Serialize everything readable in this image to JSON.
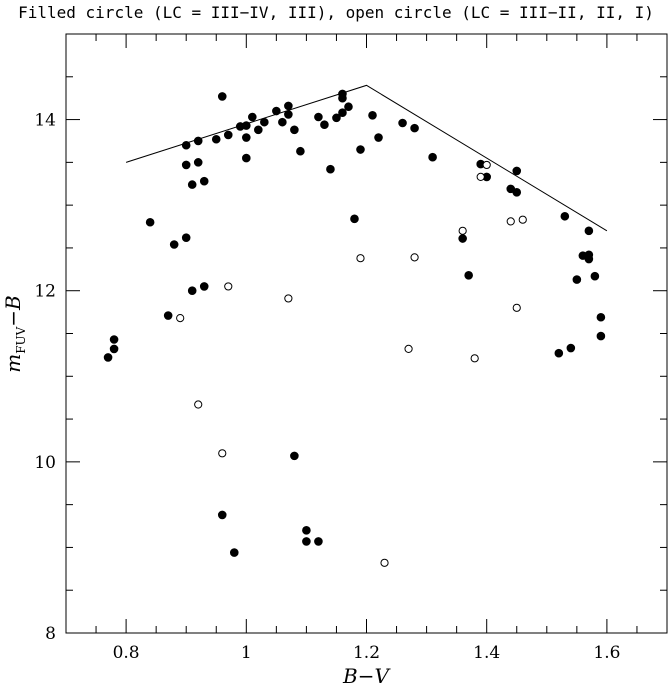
{
  "chart_data": {
    "type": "scatter",
    "title": "Filled circle (LC = III−IV, III), open circle (LC = III−II, II, I)",
    "xlabel": "B−V",
    "ylabel_main": "m",
    "ylabel_sub": "FUV",
    "ylabel_tail": "−B",
    "xlim": [
      0.7,
      1.7
    ],
    "ylim": [
      8,
      15
    ],
    "x_ticks": [
      0.8,
      1.0,
      1.2,
      1.4,
      1.6
    ],
    "x_tick_labels": [
      "0.8",
      "1",
      "1.2",
      "1.4",
      "1.6"
    ],
    "y_ticks": [
      8,
      10,
      12,
      14
    ],
    "y_tick_labels": [
      "8",
      "10",
      "12",
      "14"
    ],
    "grid": false,
    "envelope_line": [
      [
        0.8,
        13.5
      ],
      [
        1.2,
        14.4
      ],
      [
        1.6,
        12.7
      ]
    ],
    "series": [
      {
        "name": "Filled circle (LC = III−IV, III)",
        "marker": "filled",
        "points": [
          [
            0.77,
            11.22
          ],
          [
            0.78,
            11.32
          ],
          [
            0.78,
            11.43
          ],
          [
            0.84,
            12.8
          ],
          [
            0.87,
            11.71
          ],
          [
            0.88,
            12.54
          ],
          [
            0.9,
            13.7
          ],
          [
            0.9,
            13.47
          ],
          [
            0.9,
            12.62
          ],
          [
            0.91,
            13.24
          ],
          [
            0.91,
            12.0
          ],
          [
            0.92,
            13.75
          ],
          [
            0.92,
            13.5
          ],
          [
            0.93,
            13.28
          ],
          [
            0.93,
            12.05
          ],
          [
            0.95,
            13.77
          ],
          [
            0.96,
            14.27
          ],
          [
            0.96,
            9.38
          ],
          [
            0.97,
            13.82
          ],
          [
            0.98,
            8.94
          ],
          [
            0.99,
            13.92
          ],
          [
            1.0,
            13.93
          ],
          [
            1.0,
            13.79
          ],
          [
            1.0,
            13.55
          ],
          [
            1.01,
            14.03
          ],
          [
            1.02,
            13.88
          ],
          [
            1.03,
            13.97
          ],
          [
            1.05,
            14.1
          ],
          [
            1.06,
            13.97
          ],
          [
            1.07,
            14.16
          ],
          [
            1.07,
            14.06
          ],
          [
            1.08,
            13.88
          ],
          [
            1.08,
            10.07
          ],
          [
            1.09,
            13.63
          ],
          [
            1.1,
            9.2
          ],
          [
            1.1,
            9.07
          ],
          [
            1.12,
            14.03
          ],
          [
            1.12,
            9.07
          ],
          [
            1.13,
            13.94
          ],
          [
            1.14,
            13.42
          ],
          [
            1.15,
            14.02
          ],
          [
            1.16,
            14.3
          ],
          [
            1.16,
            14.25
          ],
          [
            1.16,
            14.08
          ],
          [
            1.17,
            14.15
          ],
          [
            1.18,
            12.84
          ],
          [
            1.19,
            13.65
          ],
          [
            1.21,
            14.05
          ],
          [
            1.22,
            13.79
          ],
          [
            1.26,
            13.96
          ],
          [
            1.28,
            13.9
          ],
          [
            1.31,
            13.56
          ],
          [
            1.36,
            12.61
          ],
          [
            1.37,
            12.18
          ],
          [
            1.39,
            13.48
          ],
          [
            1.4,
            13.33
          ],
          [
            1.44,
            13.19
          ],
          [
            1.45,
            13.4
          ],
          [
            1.45,
            13.15
          ],
          [
            1.52,
            11.27
          ],
          [
            1.53,
            12.87
          ],
          [
            1.54,
            11.33
          ],
          [
            1.55,
            12.13
          ],
          [
            1.56,
            12.41
          ],
          [
            1.57,
            12.42
          ],
          [
            1.57,
            12.37
          ],
          [
            1.57,
            12.7
          ],
          [
            1.58,
            12.17
          ],
          [
            1.59,
            11.69
          ],
          [
            1.59,
            11.47
          ]
        ]
      },
      {
        "name": "open circle (LC = III−II, II, I)",
        "marker": "open",
        "points": [
          [
            0.89,
            11.68
          ],
          [
            0.92,
            10.67
          ],
          [
            0.96,
            10.1
          ],
          [
            0.97,
            12.05
          ],
          [
            1.07,
            11.91
          ],
          [
            1.19,
            12.38
          ],
          [
            1.23,
            8.82
          ],
          [
            1.27,
            11.32
          ],
          [
            1.28,
            12.39
          ],
          [
            1.36,
            12.7
          ],
          [
            1.38,
            11.21
          ],
          [
            1.39,
            13.33
          ],
          [
            1.4,
            13.47
          ],
          [
            1.44,
            12.81
          ],
          [
            1.45,
            11.8
          ],
          [
            1.46,
            12.83
          ]
        ]
      }
    ]
  }
}
